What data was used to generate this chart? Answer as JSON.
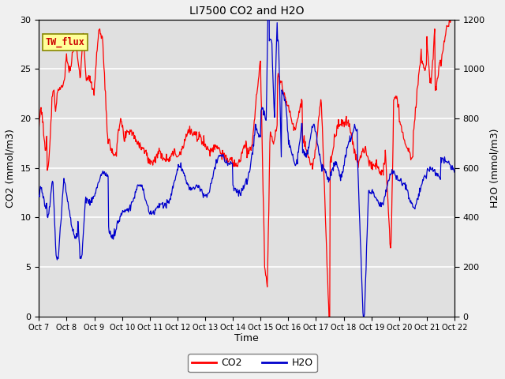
{
  "title": "LI7500 CO2 and H2O",
  "xlabel": "Time",
  "ylabel_left": "CO2 (mmol/m3)",
  "ylabel_right": "H2O (mmol/m3)",
  "xlim": [
    0,
    15
  ],
  "ylim_left": [
    0,
    30
  ],
  "ylim_right": [
    0,
    1200
  ],
  "yticks_left": [
    0,
    5,
    10,
    15,
    20,
    25,
    30
  ],
  "yticks_right": [
    0,
    200,
    400,
    600,
    800,
    1000,
    1200
  ],
  "xtick_labels": [
    "Oct 7",
    "Oct 8",
    "Oct 9",
    "Oct 10",
    "Oct 11",
    "Oct 12",
    "Oct 13",
    "Oct 14",
    "Oct 15",
    "Oct 16",
    "Oct 17",
    "Oct 18",
    "Oct 19",
    "Oct 20",
    "Oct 21",
    "Oct 22"
  ],
  "co2_color": "#ff0000",
  "h2o_color": "#0000cc",
  "fig_bg_color": "#f0f0f0",
  "plot_bg_color": "#e0e0e0",
  "grid_color": "#ffffff",
  "annotation_text": "TW_flux",
  "legend_co2": "CO2",
  "legend_h2o": "H2O"
}
